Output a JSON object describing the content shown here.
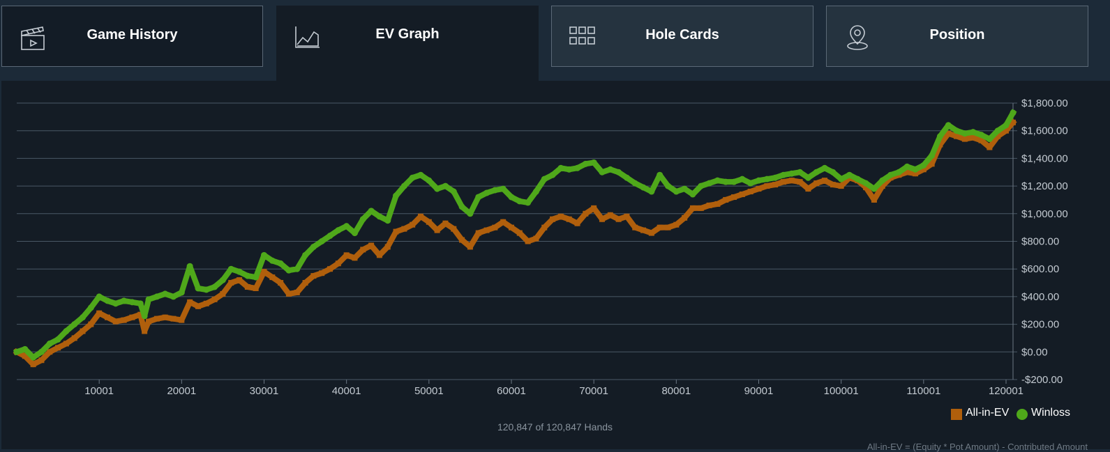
{
  "tabs": [
    {
      "label": "Game History",
      "icon": "clapperboard-icon"
    },
    {
      "label": "EV Graph",
      "icon": "line-chart-icon"
    },
    {
      "label": "Hole Cards",
      "icon": "grid-icon"
    },
    {
      "label": "Position",
      "icon": "location-pin-icon"
    }
  ],
  "hands_text": "120,847 of 120,847 Hands",
  "footnote": "All-in-EV = (Equity * Pot Amount) - Contributed Amount",
  "colors": {
    "allin_ev": "#b05f0c",
    "winloss": "#4fa81a",
    "background": "#141c25",
    "tabs_bg": "#1c2a38",
    "grid": "#4a5866"
  },
  "chart_data": {
    "type": "line",
    "title": "",
    "xlabel": "",
    "ylabel": "",
    "xlim": [
      1,
      120847
    ],
    "ylim": [
      -200,
      1800
    ],
    "x_ticks": [
      10001,
      20001,
      30001,
      40001,
      50001,
      60001,
      70001,
      80001,
      90001,
      100001,
      110001,
      120001
    ],
    "x_tick_labels": [
      "10001",
      "20001",
      "30001",
      "40001",
      "50001",
      "60001",
      "70001",
      "80001",
      "90001",
      "100001",
      "110001",
      "120001"
    ],
    "y_ticks": [
      1800,
      1600,
      1400,
      1200,
      1000,
      800,
      600,
      400,
      200,
      0,
      -200
    ],
    "y_tick_labels": [
      "$1,800.00",
      "$1,600.00",
      "$1,400.00",
      "$1,200.00",
      "$1,000.00",
      "$800.00",
      "$600.00",
      "$400.00",
      "$200.00",
      "$0.00",
      "-$200.00"
    ],
    "grid": true,
    "legend_position": "bottom-right",
    "series": [
      {
        "name": "All-in-EV",
        "marker": "square",
        "points": [
          [
            1,
            0
          ],
          [
            1000,
            -30
          ],
          [
            2000,
            -90
          ],
          [
            3000,
            -60
          ],
          [
            4000,
            0
          ],
          [
            5000,
            30
          ],
          [
            6000,
            60
          ],
          [
            7000,
            100
          ],
          [
            8000,
            150
          ],
          [
            9000,
            200
          ],
          [
            10000,
            280
          ],
          [
            11000,
            250
          ],
          [
            12000,
            220
          ],
          [
            13000,
            230
          ],
          [
            14000,
            250
          ],
          [
            15000,
            270
          ],
          [
            15500,
            150
          ],
          [
            16000,
            220
          ],
          [
            17000,
            240
          ],
          [
            18000,
            250
          ],
          [
            19000,
            240
          ],
          [
            20000,
            230
          ],
          [
            21000,
            360
          ],
          [
            22000,
            330
          ],
          [
            23000,
            350
          ],
          [
            24000,
            380
          ],
          [
            25000,
            420
          ],
          [
            26000,
            500
          ],
          [
            27000,
            520
          ],
          [
            28000,
            470
          ],
          [
            29000,
            460
          ],
          [
            30000,
            580
          ],
          [
            31000,
            540
          ],
          [
            32000,
            500
          ],
          [
            33000,
            420
          ],
          [
            34000,
            430
          ],
          [
            35000,
            500
          ],
          [
            36000,
            550
          ],
          [
            37000,
            570
          ],
          [
            38000,
            600
          ],
          [
            39000,
            640
          ],
          [
            40000,
            700
          ],
          [
            41000,
            680
          ],
          [
            42000,
            740
          ],
          [
            43000,
            770
          ],
          [
            44000,
            700
          ],
          [
            45000,
            760
          ],
          [
            46000,
            870
          ],
          [
            47000,
            890
          ],
          [
            48000,
            920
          ],
          [
            49000,
            980
          ],
          [
            50000,
            940
          ],
          [
            51000,
            880
          ],
          [
            52000,
            930
          ],
          [
            53000,
            890
          ],
          [
            54000,
            810
          ],
          [
            55000,
            760
          ],
          [
            56000,
            860
          ],
          [
            57000,
            880
          ],
          [
            58000,
            900
          ],
          [
            59000,
            940
          ],
          [
            60000,
            900
          ],
          [
            61000,
            860
          ],
          [
            62000,
            800
          ],
          [
            63000,
            820
          ],
          [
            64000,
            900
          ],
          [
            65000,
            960
          ],
          [
            66000,
            980
          ],
          [
            67000,
            960
          ],
          [
            68000,
            930
          ],
          [
            69000,
            1000
          ],
          [
            70000,
            1040
          ],
          [
            71000,
            960
          ],
          [
            72000,
            990
          ],
          [
            73000,
            960
          ],
          [
            74000,
            980
          ],
          [
            75000,
            900
          ],
          [
            76000,
            880
          ],
          [
            77000,
            860
          ],
          [
            78000,
            900
          ],
          [
            79000,
            900
          ],
          [
            80000,
            920
          ],
          [
            81000,
            970
          ],
          [
            82000,
            1040
          ],
          [
            83000,
            1040
          ],
          [
            84000,
            1060
          ],
          [
            85000,
            1070
          ],
          [
            86000,
            1100
          ],
          [
            87000,
            1120
          ],
          [
            88000,
            1140
          ],
          [
            89000,
            1160
          ],
          [
            90000,
            1180
          ],
          [
            91000,
            1200
          ],
          [
            92000,
            1210
          ],
          [
            93000,
            1230
          ],
          [
            94000,
            1240
          ],
          [
            95000,
            1230
          ],
          [
            96000,
            1180
          ],
          [
            97000,
            1220
          ],
          [
            98000,
            1240
          ],
          [
            99000,
            1210
          ],
          [
            100000,
            1200
          ],
          [
            101000,
            1260
          ],
          [
            102000,
            1240
          ],
          [
            103000,
            1190
          ],
          [
            104000,
            1100
          ],
          [
            105000,
            1200
          ],
          [
            106000,
            1260
          ],
          [
            107000,
            1280
          ],
          [
            108000,
            1300
          ],
          [
            109000,
            1290
          ],
          [
            110000,
            1320
          ],
          [
            111000,
            1360
          ],
          [
            112000,
            1500
          ],
          [
            113000,
            1580
          ],
          [
            114000,
            1560
          ],
          [
            115000,
            1540
          ],
          [
            116000,
            1550
          ],
          [
            117000,
            1530
          ],
          [
            118000,
            1480
          ],
          [
            119000,
            1560
          ],
          [
            120000,
            1600
          ],
          [
            120847,
            1660
          ]
        ]
      },
      {
        "name": "Winloss",
        "marker": "circle",
        "points": [
          [
            1,
            0
          ],
          [
            1000,
            20
          ],
          [
            2000,
            -40
          ],
          [
            3000,
            0
          ],
          [
            4000,
            60
          ],
          [
            5000,
            90
          ],
          [
            6000,
            150
          ],
          [
            7000,
            200
          ],
          [
            8000,
            250
          ],
          [
            9000,
            320
          ],
          [
            10000,
            400
          ],
          [
            11000,
            370
          ],
          [
            12000,
            350
          ],
          [
            13000,
            370
          ],
          [
            14000,
            360
          ],
          [
            15000,
            350
          ],
          [
            15500,
            260
          ],
          [
            16000,
            380
          ],
          [
            17000,
            400
          ],
          [
            18000,
            420
          ],
          [
            19000,
            400
          ],
          [
            20000,
            430
          ],
          [
            21000,
            620
          ],
          [
            22000,
            460
          ],
          [
            23000,
            450
          ],
          [
            24000,
            470
          ],
          [
            25000,
            520
          ],
          [
            26000,
            600
          ],
          [
            27000,
            580
          ],
          [
            28000,
            550
          ],
          [
            29000,
            540
          ],
          [
            30000,
            700
          ],
          [
            31000,
            660
          ],
          [
            32000,
            640
          ],
          [
            33000,
            590
          ],
          [
            34000,
            600
          ],
          [
            35000,
            700
          ],
          [
            36000,
            760
          ],
          [
            37000,
            800
          ],
          [
            38000,
            840
          ],
          [
            39000,
            880
          ],
          [
            40000,
            910
          ],
          [
            41000,
            860
          ],
          [
            42000,
            960
          ],
          [
            43000,
            1020
          ],
          [
            44000,
            980
          ],
          [
            45000,
            950
          ],
          [
            46000,
            1130
          ],
          [
            47000,
            1200
          ],
          [
            48000,
            1260
          ],
          [
            49000,
            1280
          ],
          [
            50000,
            1240
          ],
          [
            51000,
            1180
          ],
          [
            52000,
            1200
          ],
          [
            53000,
            1160
          ],
          [
            54000,
            1050
          ],
          [
            55000,
            1000
          ],
          [
            56000,
            1120
          ],
          [
            57000,
            1150
          ],
          [
            58000,
            1170
          ],
          [
            59000,
            1180
          ],
          [
            60000,
            1120
          ],
          [
            61000,
            1090
          ],
          [
            62000,
            1080
          ],
          [
            63000,
            1160
          ],
          [
            64000,
            1250
          ],
          [
            65000,
            1280
          ],
          [
            66000,
            1330
          ],
          [
            67000,
            1320
          ],
          [
            68000,
            1330
          ],
          [
            69000,
            1360
          ],
          [
            70000,
            1370
          ],
          [
            71000,
            1300
          ],
          [
            72000,
            1320
          ],
          [
            73000,
            1300
          ],
          [
            74000,
            1260
          ],
          [
            75000,
            1220
          ],
          [
            76000,
            1190
          ],
          [
            77000,
            1160
          ],
          [
            78000,
            1280
          ],
          [
            79000,
            1200
          ],
          [
            80000,
            1160
          ],
          [
            81000,
            1180
          ],
          [
            82000,
            1140
          ],
          [
            83000,
            1200
          ],
          [
            84000,
            1220
          ],
          [
            85000,
            1240
          ],
          [
            86000,
            1230
          ],
          [
            87000,
            1230
          ],
          [
            88000,
            1250
          ],
          [
            89000,
            1220
          ],
          [
            90000,
            1240
          ],
          [
            91000,
            1250
          ],
          [
            92000,
            1260
          ],
          [
            93000,
            1280
          ],
          [
            94000,
            1290
          ],
          [
            95000,
            1300
          ],
          [
            96000,
            1260
          ],
          [
            97000,
            1300
          ],
          [
            98000,
            1330
          ],
          [
            99000,
            1300
          ],
          [
            100000,
            1250
          ],
          [
            101000,
            1280
          ],
          [
            102000,
            1250
          ],
          [
            103000,
            1220
          ],
          [
            104000,
            1180
          ],
          [
            105000,
            1240
          ],
          [
            106000,
            1280
          ],
          [
            107000,
            1300
          ],
          [
            108000,
            1340
          ],
          [
            109000,
            1320
          ],
          [
            110000,
            1350
          ],
          [
            111000,
            1420
          ],
          [
            112000,
            1560
          ],
          [
            113000,
            1640
          ],
          [
            114000,
            1600
          ],
          [
            115000,
            1580
          ],
          [
            116000,
            1590
          ],
          [
            117000,
            1570
          ],
          [
            118000,
            1540
          ],
          [
            119000,
            1600
          ],
          [
            120000,
            1640
          ],
          [
            120847,
            1730
          ]
        ]
      }
    ]
  }
}
